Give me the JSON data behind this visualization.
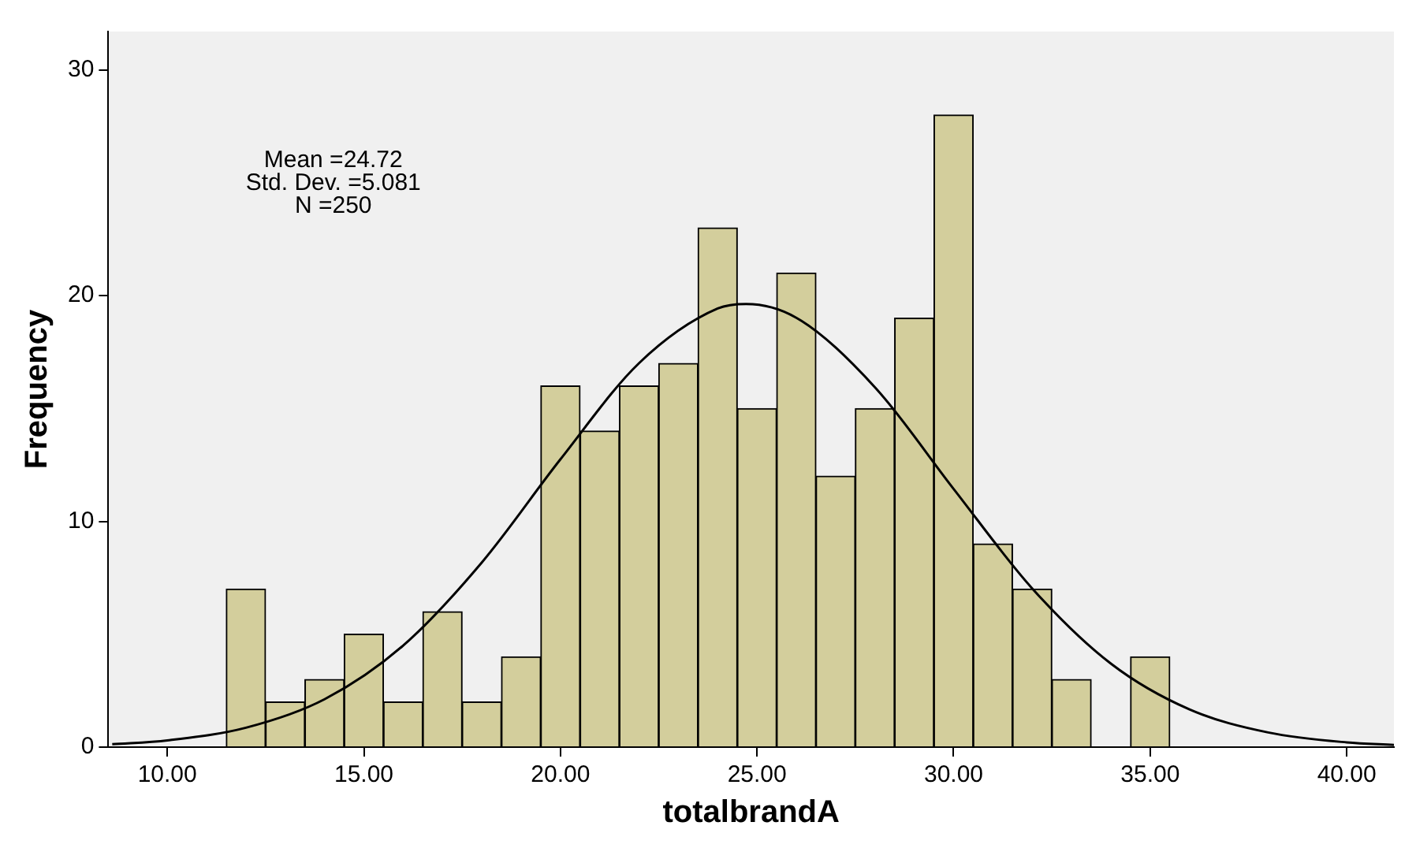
{
  "chart_data": {
    "type": "histogram",
    "xlabel": "totalbrandA",
    "ylabel": "Frequency",
    "annotations": [
      "Mean =24.72",
      "Std. Dev. =5.081",
      "N =250"
    ],
    "bins": [
      11.5,
      12.5,
      13.5,
      14.5,
      15.5,
      16.5,
      17.5,
      18.5,
      19.5,
      20.5,
      21.5,
      22.5,
      23.5,
      24.5,
      25.5,
      26.5,
      27.5,
      28.5,
      29.5,
      30.5,
      31.5,
      32.5,
      33.5,
      34.5,
      35.5
    ],
    "values": [
      7,
      2,
      3,
      5,
      2,
      6,
      2,
      4,
      16,
      14,
      16,
      17,
      23,
      15,
      21,
      12,
      15,
      19,
      28,
      9,
      7,
      3,
      0,
      4
    ],
    "color": "#d3ce9c",
    "series": [
      {
        "type": "line",
        "color": "#000000",
        "x": [
          8.6,
          10,
          12,
          14,
          16,
          18,
          20,
          22,
          24,
          24.72,
          26,
          28,
          30,
          32,
          34,
          36,
          38,
          40,
          41.2
        ],
        "values": [
          0.13,
          0.3,
          0.86,
          2.12,
          4.5,
          8.18,
          12.75,
          17.01,
          19.43,
          19.63,
          19.02,
          15.94,
          11.44,
          7.03,
          3.7,
          1.67,
          0.65,
          0.21,
          0.1
        ]
      }
    ],
    "xlim": [
      8.5,
      41.2
    ],
    "xticks": [
      {
        "value": 10,
        "label": "10.00"
      },
      {
        "value": 15,
        "label": "15.00"
      },
      {
        "value": 20,
        "label": "20.00"
      },
      {
        "value": 25,
        "label": "25.00"
      },
      {
        "value": 30,
        "label": "30.00"
      },
      {
        "value": 35,
        "label": "35.00"
      },
      {
        "value": 40,
        "label": "40.00"
      }
    ],
    "ylim": [
      0,
      31.7
    ],
    "yticks": [
      0,
      10,
      20,
      30
    ],
    "grid": false,
    "legend": false
  }
}
